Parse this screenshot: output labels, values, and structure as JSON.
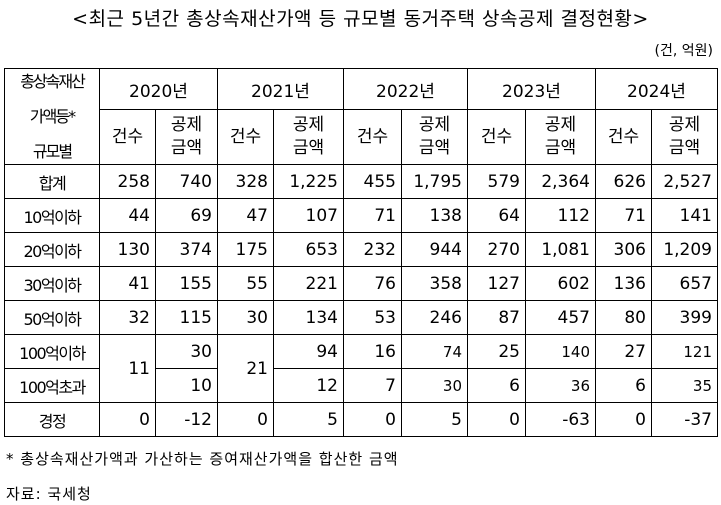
{
  "title": "<최근 5년간 총상속재산가액 등 규모별 동거주택 상속공제 결정현황>",
  "unit": "(건, 억원)",
  "corner": [
    "총상속재산",
    "가액등*",
    "규모별"
  ],
  "years": [
    "2020년",
    "2021년",
    "2022년",
    "2023년",
    "2024년"
  ],
  "sub_headers": {
    "count": "건수",
    "amount_top": "공제",
    "amount_bottom": "금액"
  },
  "rows": [
    {
      "label": "합계",
      "values": [
        "258",
        "740",
        "328",
        "1,225",
        "455",
        "1,795",
        "579",
        "2,364",
        "626",
        "2,527"
      ]
    },
    {
      "label": "10억이하",
      "values": [
        "44",
        "69",
        "47",
        "107",
        "71",
        "138",
        "64",
        "112",
        "71",
        "141"
      ]
    },
    {
      "label": "20억이하",
      "values": [
        "130",
        "374",
        "175",
        "653",
        "232",
        "944",
        "270",
        "1,081",
        "306",
        "1,209"
      ]
    },
    {
      "label": "30억이하",
      "values": [
        "41",
        "155",
        "55",
        "221",
        "76",
        "358",
        "127",
        "602",
        "136",
        "657"
      ]
    },
    {
      "label": "50억이하",
      "values": [
        "32",
        "115",
        "30",
        "134",
        "53",
        "246",
        "87",
        "457",
        "80",
        "399"
      ]
    }
  ],
  "row_100": {
    "label_a": "100억이하",
    "label_b": "100억초과",
    "merged_2020_count": "11",
    "y2020_amount_a": "30",
    "y2020_amount_b": "10",
    "merged_2021_count": "21",
    "y2021_amount_a": "94",
    "y2021_amount_b": "12",
    "a_rest": [
      "16",
      "74",
      "25",
      "140",
      "27",
      "121"
    ],
    "b_rest": [
      "7",
      "30",
      "6",
      "36",
      "6",
      "35"
    ]
  },
  "row_correction": {
    "label": "경정",
    "values": [
      "0",
      "-12",
      "0",
      "5",
      "0",
      "5",
      "0",
      "-63",
      "0",
      "-37"
    ]
  },
  "note": "* 총상속재산가액과 가산하는 증여재산가액을 합산한 금액",
  "source": "자료: 국세청"
}
